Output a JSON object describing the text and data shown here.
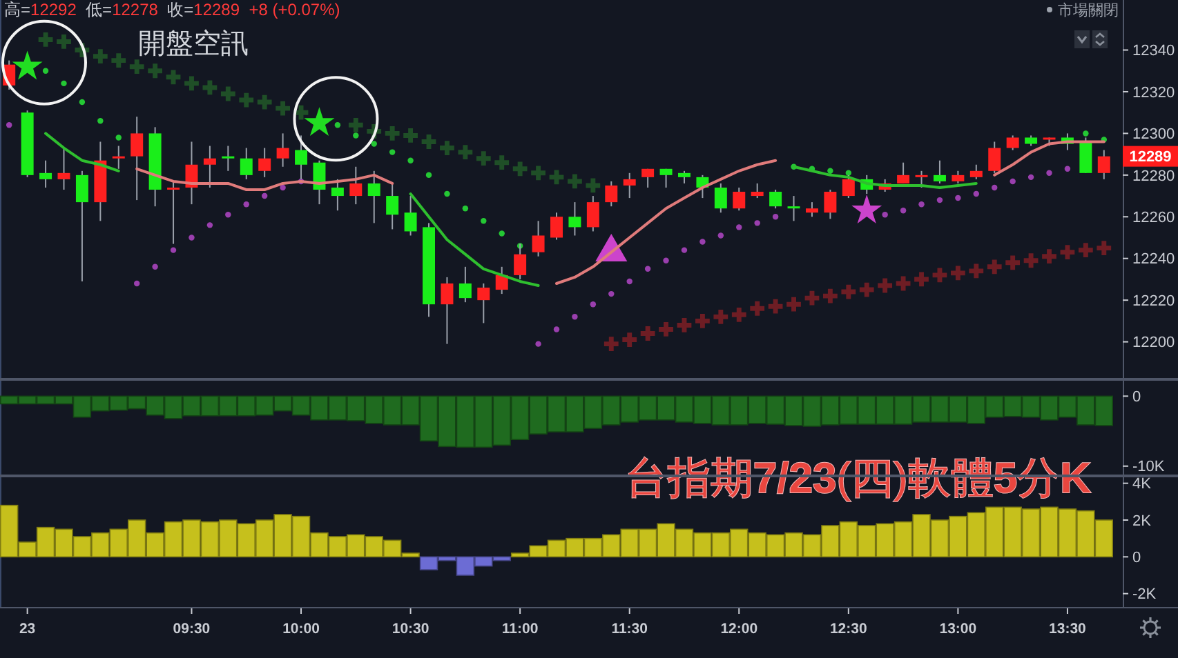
{
  "chart_data": [
    {
      "type": "candlestick",
      "title": "台指期7/23(四)軟體5分K",
      "subtitle": "高=12292  低=12278  收=12289  +8 (+0.07%)",
      "annotations": [
        "開盤空訊",
        "市場關閉",
        "12289"
      ],
      "categories": [
        null,
        null,
        null,
        null,
        null,
        null,
        null,
        null,
        null,
        null,
        null,
        null,
        null,
        null,
        null,
        null,
        null,
        null,
        null,
        null,
        null,
        null,
        null,
        null,
        null,
        null,
        null,
        null,
        null,
        null,
        null,
        null,
        null,
        null,
        null,
        null,
        null,
        null,
        null,
        null,
        null,
        null,
        null,
        null,
        null,
        null,
        null,
        null,
        null,
        null,
        null,
        null,
        null,
        null,
        null,
        null,
        null,
        null,
        null,
        null,
        null
      ],
      "ohlc": [
        [
          12323,
          12335,
          12321,
          12333
        ],
        [
          12310,
          12311,
          12279,
          12280
        ],
        [
          12281,
          12287,
          12274,
          12278
        ],
        [
          12278,
          12293,
          12273,
          12281
        ],
        [
          12280,
          12282,
          12229,
          12267
        ],
        [
          12267,
          12296,
          12258,
          12287
        ],
        [
          12288,
          12294,
          12283,
          12289
        ],
        [
          12289,
          12308,
          12268,
          12300
        ],
        [
          12300,
          12303,
          12265,
          12273
        ],
        [
          12273,
          12277,
          12247,
          12274
        ],
        [
          12274,
          12296,
          12266,
          12285
        ],
        [
          12285,
          12294,
          12274,
          12288
        ],
        [
          12289,
          12294,
          12282,
          12288
        ],
        [
          12288,
          12293,
          12278,
          12280
        ],
        [
          12282,
          12293,
          12279,
          12288
        ],
        [
          12288,
          12300,
          12284,
          12293
        ],
        [
          12292,
          12299,
          12278,
          12285
        ],
        [
          12286,
          12287,
          12266,
          12273
        ],
        [
          12274,
          12278,
          12263,
          12270
        ],
        [
          12270,
          12284,
          12266,
          12276
        ],
        [
          12276,
          12282,
          12257,
          12270
        ],
        [
          12270,
          12276,
          12254,
          12261
        ],
        [
          12262,
          12270,
          12251,
          12253
        ],
        [
          12255,
          12257,
          12212,
          12218
        ],
        [
          12218,
          12231,
          12199,
          12228
        ],
        [
          12228,
          12236,
          12219,
          12221
        ],
        [
          12220,
          12228,
          12209,
          12226
        ],
        [
          12225,
          12236,
          12223,
          12232
        ],
        [
          12232,
          12247,
          12230,
          12242
        ],
        [
          12243,
          12258,
          12241,
          12251
        ],
        [
          12250,
          12262,
          12249,
          12260
        ],
        [
          12260,
          12267,
          12251,
          12255
        ],
        [
          12255,
          12270,
          12253,
          12267
        ],
        [
          12267,
          12277,
          12265,
          12275
        ],
        [
          12275,
          12281,
          12269,
          12278
        ],
        [
          12279,
          12283,
          12274,
          12283
        ],
        [
          12283,
          12283,
          12274,
          12280
        ],
        [
          12281,
          12282,
          12276,
          12279
        ],
        [
          12279,
          12280,
          12269,
          12274
        ],
        [
          12274,
          12276,
          12262,
          12264
        ],
        [
          12264,
          12274,
          12263,
          12272
        ],
        [
          12270,
          12276,
          12269,
          12272
        ],
        [
          12272,
          12273,
          12264,
          12265
        ],
        [
          12265,
          12270,
          12258,
          12264
        ],
        [
          12262,
          12267,
          12260,
          12264
        ],
        [
          12262,
          12273,
          12259,
          12272
        ],
        [
          12270,
          12280,
          12269,
          12278
        ],
        [
          12278,
          12280,
          12271,
          12273
        ],
        [
          12273,
          12278,
          12272,
          12276
        ],
        [
          12276,
          12286,
          12276,
          12280
        ],
        [
          12279,
          12282,
          12274,
          12280
        ],
        [
          12280,
          12287,
          12276,
          12277
        ],
        [
          12277,
          12282,
          12276,
          12280
        ],
        [
          12279,
          12285,
          12278,
          12282
        ],
        [
          12282,
          12296,
          12281,
          12293
        ],
        [
          12293,
          12299,
          12292,
          12298
        ],
        [
          12298,
          12299,
          12294,
          12295
        ],
        [
          12297,
          12298,
          12294,
          12298
        ],
        [
          12298,
          12300,
          12292,
          12295
        ],
        [
          12296,
          12298,
          12281,
          12281
        ],
        [
          12281,
          12292,
          12278,
          12289
        ]
      ],
      "colors": [
        "#ff2020",
        "#1aee1a",
        "#1aee1a",
        "#ff2020",
        "#1aee1a",
        "#ff2020",
        "#ff2020",
        "#ff2020",
        "#1aee1a",
        "#ff2020",
        "#ff2020",
        "#ff2020",
        "#1aee1a",
        "#1aee1a",
        "#ff2020",
        "#ff2020",
        "#1aee1a",
        "#1aee1a",
        "#1aee1a",
        "#ff2020",
        "#1aee1a",
        "#1aee1a",
        "#1aee1a",
        "#1aee1a",
        "#ff2020",
        "#1aee1a",
        "#ff2020",
        "#ff2020",
        "#ff2020",
        "#ff2020",
        "#ff2020",
        "#1aee1a",
        "#ff2020",
        "#ff2020",
        "#ff2020",
        "#ff2020",
        "#1aee1a",
        "#1aee1a",
        "#1aee1a",
        "#1aee1a",
        "#ff2020",
        "#ff2020",
        "#1aee1a",
        "#1aee1a",
        "#ff2020",
        "#ff2020",
        "#ff2020",
        "#1aee1a",
        "#ff2020",
        "#ff2020",
        "#ff2020",
        "#1aee1a",
        "#ff2020",
        "#ff2020",
        "#ff2020",
        "#ff2020",
        "#1aee1a",
        "#ff2020",
        "#1aee1a",
        "#1aee1a",
        "#ff2020"
      ],
      "series": [
        {
          "type": "line",
          "color": "#2fbf2f",
          "values": [
            null,
            null,
            12300,
            12293,
            12287,
            12285,
            12282,
            null,
            null,
            null,
            null,
            null,
            null,
            null,
            null,
            null,
            null,
            null,
            null,
            null,
            null,
            null,
            12271,
            12260,
            12249,
            12242,
            12235,
            12232,
            12229,
            12227,
            null,
            null,
            null,
            null,
            null,
            null,
            null,
            null,
            null,
            null,
            null,
            null,
            null,
            12284,
            12282,
            12280,
            12279,
            12276,
            12275,
            12275,
            12275,
            12274,
            12275,
            12276,
            null,
            null,
            null,
            null,
            null,
            null,
            null
          ]
        },
        {
          "type": "line",
          "color": "#e07b7b",
          "values": [
            null,
            null,
            null,
            null,
            null,
            null,
            null,
            12283,
            12280,
            12277,
            12276,
            12276,
            12276,
            12273,
            12273,
            12276,
            12277,
            12276,
            12277,
            12278,
            12280,
            12276,
            null,
            null,
            null,
            null,
            null,
            null,
            null,
            null,
            12228,
            12231,
            12236,
            12243,
            12250,
            12257,
            12264,
            12269,
            12274,
            12278,
            12282,
            12285,
            12287,
            null,
            null,
            null,
            null,
            null,
            null,
            null,
            null,
            null,
            null,
            null,
            12280,
            12285,
            12291,
            12295,
            12296,
            12296,
            12296
          ]
        },
        {
          "type": "scatter",
          "marker": "circle",
          "color": "#24c834",
          "values": [
            null,
            null,
            12330,
            12324,
            12315,
            12306,
            12298,
            null,
            null,
            null,
            null,
            null,
            null,
            null,
            null,
            null,
            null,
            null,
            12304,
            12299,
            12295,
            12291,
            12287,
            12280,
            12271,
            12264,
            12258,
            12252,
            12246,
            null,
            null,
            null,
            null,
            null,
            null,
            null,
            null,
            null,
            null,
            null,
            null,
            null,
            null,
            12284,
            12283,
            12282,
            12281,
            null,
            null,
            null,
            null,
            null,
            null,
            null,
            null,
            null,
            null,
            null,
            null,
            12300,
            12297
          ]
        },
        {
          "type": "scatter",
          "marker": "circle",
          "color": "#9a3fae",
          "values": [
            12304,
            null,
            null,
            null,
            null,
            null,
            null,
            12228,
            12236,
            12244,
            12250,
            12256,
            12261,
            12266,
            12270,
            12274,
            12277,
            null,
            null,
            null,
            null,
            null,
            null,
            null,
            null,
            null,
            null,
            null,
            null,
            12199,
            12206,
            12212,
            12218,
            12223,
            12229,
            12235,
            12239,
            12244,
            12248,
            12251,
            12255,
            12257,
            12260,
            null,
            null,
            null,
            null,
            null,
            12261,
            12263,
            12266,
            12268,
            12269,
            12271,
            12274,
            12277,
            12279,
            12281,
            12283,
            null,
            null
          ]
        },
        {
          "type": "scatter",
          "marker": "cross",
          "color": "#1f4f27",
          "values": [
            null,
            null,
            12345,
            12344,
            12340,
            12337,
            12335,
            12332,
            12330,
            12327,
            12324,
            12322,
            12319,
            12316,
            12315,
            12312,
            12310,
            null,
            null,
            12304,
            12301,
            12300,
            12299,
            12296,
            12293,
            12291,
            12288,
            12286,
            12283,
            12281,
            12279,
            12277,
            12275,
            null,
            null,
            null,
            null,
            null,
            null,
            null,
            null,
            null,
            null,
            null,
            null,
            null,
            null,
            null,
            null,
            null,
            null,
            null,
            null,
            null,
            null,
            null,
            null,
            null,
            null,
            null,
            null
          ]
        },
        {
          "type": "scatter",
          "marker": "cross",
          "color": "#6e1d24",
          "values": [
            null,
            null,
            null,
            null,
            null,
            null,
            null,
            null,
            null,
            null,
            null,
            null,
            null,
            null,
            null,
            null,
            null,
            null,
            null,
            null,
            null,
            null,
            null,
            null,
            null,
            null,
            null,
            null,
            null,
            null,
            null,
            null,
            null,
            12199,
            12201,
            12204,
            12206,
            12208,
            12210,
            12212,
            12213,
            12216,
            12217,
            12218,
            12221,
            12222,
            12224,
            12225,
            12227,
            12228,
            12230,
            12232,
            12233,
            12234,
            12236,
            12238,
            12239,
            12241,
            12243,
            12244,
            12245
          ]
        },
        {
          "type": "scatter",
          "marker": "star",
          "color": "#22dd22",
          "values": [
            null,
            12332,
            null,
            null,
            null,
            null,
            null,
            null,
            null,
            null,
            null,
            null,
            null,
            null,
            null,
            null,
            null,
            12305,
            null,
            null,
            null,
            null,
            null,
            null,
            null,
            null,
            null,
            null,
            null,
            null,
            null,
            null,
            null,
            null,
            null,
            null,
            null,
            null,
            null,
            null,
            null,
            null,
            null,
            null,
            null,
            null,
            null,
            null,
            null,
            null,
            null,
            null,
            null,
            null,
            null,
            null,
            null,
            null,
            null,
            null,
            null
          ]
        },
        {
          "type": "scatter",
          "marker": "triangle",
          "color": "#cc44cc",
          "values": [
            null,
            null,
            null,
            null,
            null,
            null,
            null,
            null,
            null,
            null,
            null,
            null,
            null,
            null,
            null,
            null,
            null,
            null,
            null,
            null,
            null,
            null,
            null,
            null,
            null,
            null,
            null,
            null,
            null,
            null,
            null,
            null,
            null,
            12243,
            null,
            null,
            null,
            null,
            null,
            null,
            null,
            null,
            null,
            null,
            null,
            null,
            null,
            null,
            null,
            null,
            null,
            null,
            null,
            null,
            null,
            null,
            null,
            null,
            null,
            null,
            null
          ]
        },
        {
          "type": "scatter",
          "marker": "star",
          "color": "#cc44cc",
          "values": [
            null,
            null,
            null,
            null,
            null,
            null,
            null,
            null,
            null,
            null,
            null,
            null,
            null,
            null,
            null,
            null,
            null,
            null,
            null,
            null,
            null,
            null,
            null,
            null,
            null,
            null,
            null,
            null,
            null,
            null,
            null,
            null,
            null,
            null,
            null,
            null,
            null,
            null,
            null,
            null,
            null,
            null,
            null,
            null,
            null,
            null,
            null,
            12263,
            null,
            null,
            null,
            null,
            null,
            null,
            null,
            null,
            null,
            null,
            null,
            null,
            null
          ]
        }
      ],
      "ylim": [
        12182,
        12364
      ],
      "yticks": [
        12200,
        12220,
        12240,
        12260,
        12280,
        12300,
        12320,
        12340
      ]
    },
    {
      "type": "bar",
      "categories": [
        null,
        null,
        null,
        null,
        null,
        null,
        null,
        null,
        null,
        null,
        null,
        null,
        null,
        null,
        null,
        null,
        null,
        null,
        null,
        null,
        null,
        null,
        null,
        null,
        null,
        null,
        null,
        null,
        null,
        null,
        null,
        null,
        null,
        null,
        null,
        null,
        null,
        null,
        null,
        null,
        null,
        null,
        null,
        null,
        null,
        null,
        null,
        null,
        null,
        null,
        null,
        null,
        null,
        null,
        null,
        null,
        null,
        null,
        null,
        null,
        null
      ],
      "values": [
        -1100,
        -1100,
        -1100,
        -1100,
        -3000,
        -2100,
        -2000,
        -1800,
        -2700,
        -3200,
        -2800,
        -2800,
        -2800,
        -2800,
        -2700,
        -2100,
        -2700,
        -3400,
        -3400,
        -3500,
        -3900,
        -4100,
        -4100,
        -6400,
        -7200,
        -7300,
        -7300,
        -7000,
        -6200,
        -5400,
        -5100,
        -5100,
        -4600,
        -4100,
        -3700,
        -3400,
        -3400,
        -3700,
        -3900,
        -4100,
        -4100,
        -3900,
        -4000,
        -4200,
        -4300,
        -4100,
        -4000,
        -4000,
        -4000,
        -4000,
        -3700,
        -3700,
        -3700,
        -3900,
        -3000,
        -2900,
        -3000,
        -3400,
        -3000,
        -4100,
        -4200
      ],
      "color": "#1f6b1f",
      "ylim": [
        -11400,
        2400
      ],
      "yticks": [
        0,
        {
          "value": -10000,
          "label": "-10K"
        }
      ]
    },
    {
      "type": "bar",
      "categories": [
        null,
        "23",
        null,
        null,
        null,
        null,
        null,
        null,
        null,
        null,
        "09:30",
        null,
        null,
        null,
        null,
        null,
        "10:00",
        null,
        null,
        null,
        null,
        null,
        "10:30",
        null,
        null,
        null,
        null,
        null,
        "11:00",
        null,
        null,
        null,
        null,
        null,
        "11:30",
        null,
        null,
        null,
        null,
        null,
        "12:00",
        null,
        null,
        null,
        null,
        null,
        "12:30",
        null,
        null,
        null,
        null,
        null,
        "13:00",
        null,
        null,
        null,
        null,
        null,
        "13:30",
        null,
        null
      ],
      "values": [
        2800,
        800,
        1600,
        1500,
        1100,
        1300,
        1500,
        2000,
        1300,
        1900,
        2000,
        1900,
        2000,
        1800,
        2000,
        2300,
        2200,
        1300,
        1100,
        1200,
        1100,
        900,
        200,
        -700,
        -200,
        -1000,
        -500,
        -200,
        200,
        600,
        900,
        1000,
        1000,
        1200,
        1500,
        1500,
        1800,
        1500,
        1300,
        1300,
        1500,
        1300,
        1200,
        1300,
        1200,
        1700,
        1900,
        1700,
        1800,
        1900,
        2300,
        2000,
        2200,
        2400,
        2700,
        2700,
        2600,
        2700,
        2600,
        2500,
        2000
      ],
      "colors": [
        "#c6c01c",
        "#c6c01c",
        "#c6c01c",
        "#c6c01c",
        "#c6c01c",
        "#c6c01c",
        "#c6c01c",
        "#c6c01c",
        "#c6c01c",
        "#c6c01c",
        "#c6c01c",
        "#c6c01c",
        "#c6c01c",
        "#c6c01c",
        "#c6c01c",
        "#c6c01c",
        "#c6c01c",
        "#c6c01c",
        "#c6c01c",
        "#c6c01c",
        "#c6c01c",
        "#c6c01c",
        "#c6c01c",
        "#6c6cd4",
        "#6c6cd4",
        "#6c6cd4",
        "#6c6cd4",
        "#6c6cd4",
        "#c6c01c",
        "#c6c01c",
        "#c6c01c",
        "#c6c01c",
        "#c6c01c",
        "#c6c01c",
        "#c6c01c",
        "#c6c01c",
        "#c6c01c",
        "#c6c01c",
        "#c6c01c",
        "#c6c01c",
        "#c6c01c",
        "#c6c01c",
        "#c6c01c",
        "#c6c01c",
        "#c6c01c",
        "#c6c01c",
        "#c6c01c",
        "#c6c01c",
        "#c6c01c",
        "#c6c01c",
        "#c6c01c",
        "#c6c01c",
        "#c6c01c",
        "#c6c01c",
        "#c6c01c",
        "#c6c01c",
        "#c6c01c",
        "#c6c01c",
        "#c6c01c",
        "#c6c01c",
        "#c6c01c"
      ],
      "ylim": [
        -2800,
        4400
      ],
      "yticks": [
        {
          "value": -2000,
          "label": "-2K"
        },
        0,
        {
          "value": 2000,
          "label": "2K"
        },
        {
          "value": 4000,
          "label": "4K"
        }
      ]
    }
  ]
}
